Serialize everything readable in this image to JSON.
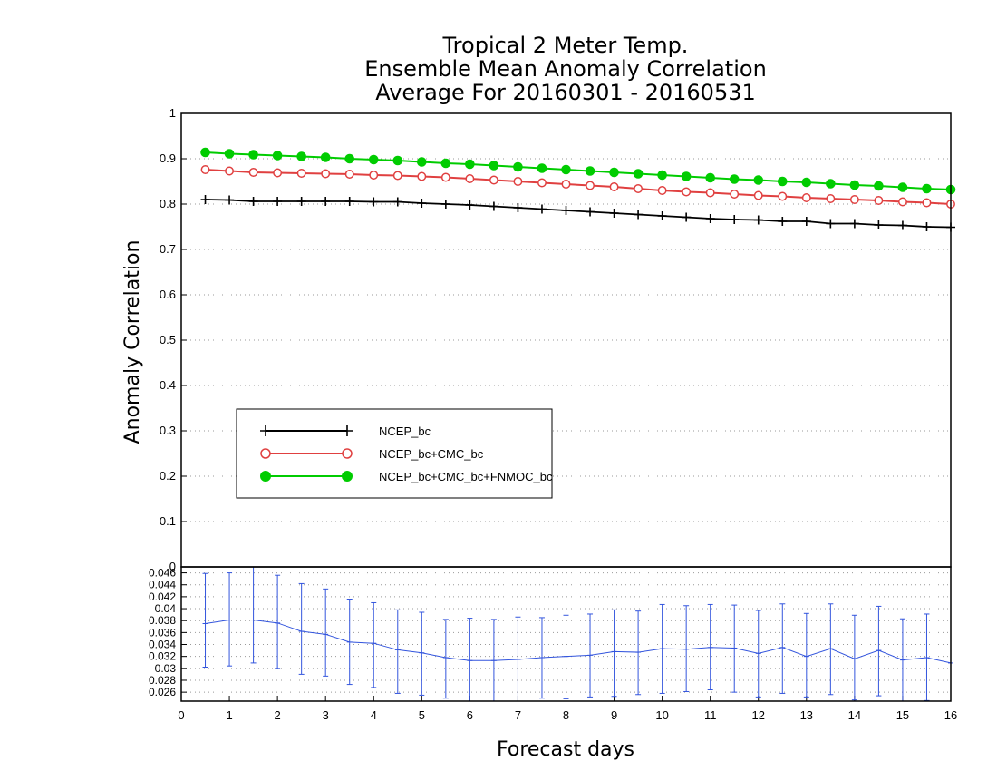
{
  "chart_data": [
    {
      "type": "line",
      "title": [
        "Tropical 2 Meter Temp.",
        "Ensemble Mean Anomaly Correlation",
        "Average For 20160301 - 20160531"
      ],
      "xlabel": "",
      "ylabel": "Anomaly Correlation",
      "ylim": [
        0,
        1
      ],
      "xlim": [
        0,
        16
      ],
      "yticks": [
        "0",
        "0.1",
        "0.2",
        "0.3",
        "0.4",
        "0.5",
        "0.6",
        "0.7",
        "0.8",
        "0.9",
        "1"
      ],
      "grid": true,
      "legend_position": "lower-left",
      "x": [
        0.5,
        1,
        1.5,
        2,
        2.5,
        3,
        3.5,
        4,
        4.5,
        5,
        5.5,
        6,
        6.5,
        7,
        7.5,
        8,
        8.5,
        9,
        9.5,
        10,
        10.5,
        11,
        11.5,
        12,
        12.5,
        13,
        13.5,
        14,
        14.5,
        15,
        15.5,
        16
      ],
      "series": [
        {
          "name": "NCEP_bc",
          "color": "#000000",
          "marker": "plus",
          "values": [
            0.81,
            0.809,
            0.806,
            0.806,
            0.806,
            0.806,
            0.806,
            0.805,
            0.805,
            0.802,
            0.8,
            0.798,
            0.795,
            0.792,
            0.789,
            0.786,
            0.783,
            0.78,
            0.777,
            0.774,
            0.771,
            0.768,
            0.766,
            0.765,
            0.762,
            0.762,
            0.757,
            0.757,
            0.754,
            0.753,
            0.75,
            0.749
          ]
        },
        {
          "name": "NCEP_bc+CMC_bc",
          "color": "#e04040",
          "marker": "open-circle",
          "values": [
            0.876,
            0.873,
            0.87,
            0.869,
            0.868,
            0.867,
            0.866,
            0.864,
            0.863,
            0.861,
            0.859,
            0.856,
            0.853,
            0.85,
            0.847,
            0.844,
            0.841,
            0.838,
            0.834,
            0.83,
            0.827,
            0.825,
            0.822,
            0.819,
            0.817,
            0.814,
            0.812,
            0.81,
            0.808,
            0.805,
            0.803,
            0.8
          ]
        },
        {
          "name": "NCEP_bc+CMC_bc+FNMOC_bc",
          "color": "#00cc00",
          "marker": "filled-circle",
          "values": [
            0.914,
            0.911,
            0.909,
            0.907,
            0.905,
            0.903,
            0.9,
            0.898,
            0.896,
            0.893,
            0.89,
            0.888,
            0.885,
            0.882,
            0.879,
            0.876,
            0.873,
            0.87,
            0.867,
            0.864,
            0.861,
            0.858,
            0.855,
            0.853,
            0.85,
            0.848,
            0.845,
            0.842,
            0.84,
            0.837,
            0.834,
            0.832
          ]
        }
      ]
    },
    {
      "type": "line",
      "subtype": "errorbar",
      "xlabel": "Forecast days",
      "xlim": [
        0,
        16
      ],
      "ylim": [
        0.0245,
        0.047
      ],
      "xticks": [
        "0",
        "1",
        "2",
        "3",
        "4",
        "5",
        "6",
        "7",
        "8",
        "9",
        "10",
        "11",
        "12",
        "13",
        "14",
        "15",
        "16"
      ],
      "yticks": [
        "0.026",
        "0.028",
        "0.03",
        "0.032",
        "0.034",
        "0.036",
        "0.038",
        "0.04",
        "0.042",
        "0.044",
        "0.046"
      ],
      "grid": true,
      "series": [
        {
          "color": "#3355dd",
          "x": [
            0.5,
            1,
            1.5,
            2,
            2.5,
            3,
            3.5,
            4,
            4.5,
            5,
            5.5,
            6,
            6.5,
            7,
            7.5,
            8,
            8.5,
            9,
            9.5,
            10,
            10.5,
            11,
            11.5,
            12,
            12.5,
            13,
            13.5,
            14,
            14.5,
            15,
            15.5,
            16
          ],
          "values": [
            0.0375,
            0.0381,
            0.0381,
            0.0376,
            0.0362,
            0.0357,
            0.0344,
            0.0342,
            0.0331,
            0.0326,
            0.0318,
            0.0313,
            0.0313,
            0.0315,
            0.0318,
            0.032,
            0.0322,
            0.0328,
            0.0327,
            0.0333,
            0.0332,
            0.0335,
            0.0334,
            0.0325,
            0.0335,
            0.032,
            0.0333,
            0.0316,
            0.033,
            0.0314,
            0.0318,
            0.0309
          ],
          "lower": [
            0.0302,
            0.0304,
            0.0309,
            0.03,
            0.029,
            0.0287,
            0.0273,
            0.0268,
            0.0258,
            0.0255,
            0.025,
            0.0245,
            0.0245,
            0.0245,
            0.025,
            0.0249,
            0.0252,
            0.0253,
            0.0256,
            0.0258,
            0.0261,
            0.0264,
            0.026,
            0.0252,
            0.0258,
            0.0252,
            0.0256,
            0.0247,
            0.0254,
            0.0245,
            0.0246,
            0.0309
          ],
          "upper": [
            0.0459,
            0.046,
            0.047,
            0.0456,
            0.0442,
            0.0433,
            0.0416,
            0.041,
            0.0398,
            0.0394,
            0.0382,
            0.0384,
            0.0382,
            0.0386,
            0.0385,
            0.0389,
            0.0391,
            0.0398,
            0.0396,
            0.0407,
            0.0405,
            0.0407,
            0.0406,
            0.0397,
            0.0408,
            0.0392,
            0.0408,
            0.0389,
            0.0404,
            0.0383,
            0.0391,
            0.0309
          ]
        }
      ]
    }
  ]
}
